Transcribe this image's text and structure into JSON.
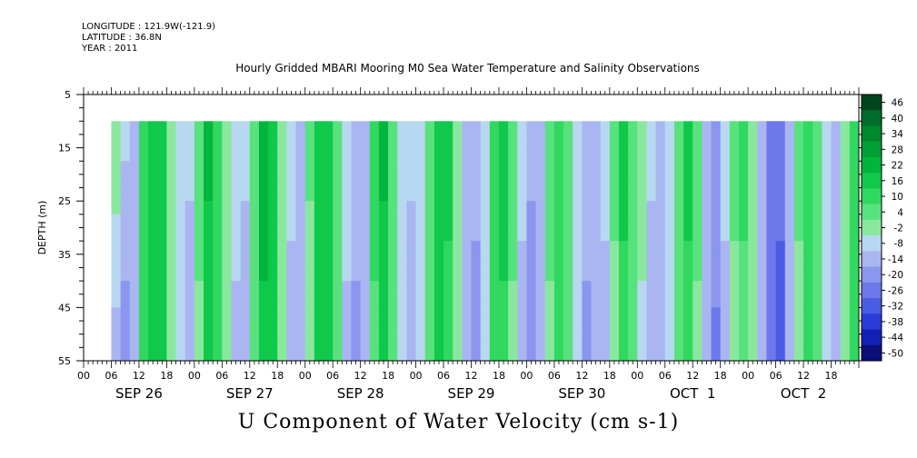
{
  "header": {
    "longitude": "LONGITUDE : 121.9W(-121.9)",
    "latitude": "LATITUDE : 36.8N",
    "year": "YEAR : 2011"
  },
  "chart_data": {
    "type": "heatmap",
    "title": "Hourly Gridded MBARI Mooring M0 Sea Water Temperature and Salinity Observations",
    "xlabel": "U Component of Water Velocity (cm s-1)",
    "ylabel": "DEPTH (m)",
    "ylim": [
      5,
      55
    ],
    "y_inverted": true,
    "y_ticks": [
      5,
      15,
      25,
      35,
      45,
      55
    ],
    "x_hour_labels": [
      "00",
      "06",
      "12",
      "18",
      "00",
      "06",
      "12",
      "18",
      "00",
      "06",
      "12",
      "18",
      "00",
      "06",
      "12",
      "18",
      "00",
      "06",
      "12",
      "18",
      "00",
      "06",
      "12",
      "18",
      "00",
      "06",
      "12",
      "18"
    ],
    "x_day_labels": [
      "SEP 26",
      "SEP 27",
      "SEP 28",
      "SEP 29",
      "SEP 30",
      "OCT  1",
      "OCT  2"
    ],
    "x_range_hours": [
      0,
      168
    ],
    "data_start_hour": 6,
    "data_depth_range": [
      10,
      55
    ],
    "colorbar": {
      "labels": [
        "46",
        "40",
        "34",
        "28",
        "22",
        "16",
        "10",
        "4",
        "-2",
        "-8",
        "-14",
        "-20",
        "-26",
        "-32",
        "-38",
        "-44",
        "-50"
      ],
      "colors": [
        "#00441b",
        "#006d2c",
        "#00882e",
        "#00a035",
        "#00b53c",
        "#10c84a",
        "#30d860",
        "#58e27d",
        "#8ae89e",
        "#b8d7f0",
        "#a9b6f2",
        "#8b96ee",
        "#6d79ea",
        "#4a5ce4",
        "#2a3bd6",
        "#1420b4",
        "#0a0f7a"
      ]
    },
    "columns_by_hour": {
      "hours": [
        6,
        8,
        10,
        12,
        14,
        16,
        18,
        20,
        22,
        24,
        26,
        28,
        30,
        32,
        34,
        36,
        38,
        40,
        42,
        44,
        46,
        48,
        50,
        52,
        54,
        56,
        58,
        60,
        62,
        64,
        66,
        68,
        70,
        72,
        74,
        76,
        78,
        80,
        82,
        84,
        86,
        88,
        90,
        92,
        94,
        96,
        98,
        100,
        102,
        104,
        106,
        108,
        110,
        112,
        114,
        116,
        118,
        120,
        122,
        124,
        126,
        128,
        130,
        132,
        134,
        136,
        138,
        140,
        142,
        144,
        146,
        148,
        150,
        152,
        154,
        156,
        158,
        160,
        162,
        164,
        166,
        168
      ],
      "surface": [
        4,
        -6,
        -8,
        10,
        22,
        18,
        4,
        -4,
        -6,
        8,
        24,
        16,
        2,
        -4,
        -6,
        10,
        26,
        18,
        4,
        -6,
        -8,
        6,
        22,
        20,
        6,
        -4,
        -10,
        -8,
        14,
        24,
        10,
        -2,
        -6,
        -4,
        10,
        22,
        18,
        2,
        -10,
        -12,
        -2,
        16,
        20,
        8,
        -4,
        -12,
        -10,
        8,
        16,
        10,
        -2,
        -10,
        -8,
        -6,
        6,
        18,
        10,
        2,
        -6,
        -10,
        -4,
        10,
        18,
        8,
        -8,
        -14,
        -6,
        6,
        12,
        4,
        -8,
        -20,
        -24,
        -10,
        6,
        16,
        10,
        -4,
        -8,
        4,
        16,
        10
      ],
      "bottom": [
        -12,
        -18,
        -10,
        12,
        20,
        16,
        2,
        -6,
        -12,
        2,
        18,
        14,
        2,
        -10,
        -12,
        4,
        20,
        16,
        2,
        -10,
        -14,
        0,
        16,
        18,
        4,
        -10,
        -16,
        -12,
        8,
        18,
        8,
        -6,
        -12,
        -8,
        8,
        18,
        14,
        -2,
        -14,
        -16,
        -6,
        12,
        14,
        2,
        -12,
        -18,
        -14,
        2,
        12,
        6,
        -8,
        -16,
        -12,
        -10,
        2,
        14,
        6,
        -4,
        -12,
        -14,
        -8,
        6,
        14,
        2,
        -14,
        -22,
        -10,
        2,
        8,
        -2,
        -14,
        -26,
        -28,
        -14,
        2,
        12,
        6,
        -8,
        -10,
        2,
        14,
        8
      ]
    }
  }
}
